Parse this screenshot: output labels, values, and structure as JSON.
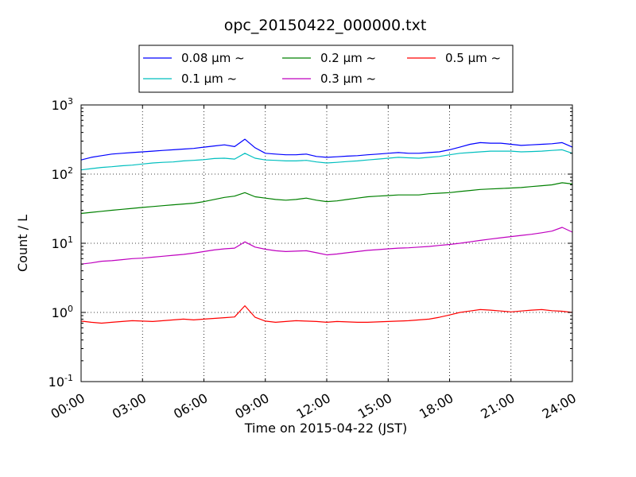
{
  "chart_data": {
    "type": "line",
    "title": "opc_20150422_000000.txt",
    "xlabel": "Time on 2015-04-22 (JST)",
    "ylabel": "Count / L",
    "yscale": "log",
    "ylim": [
      0.1,
      1000
    ],
    "xlim": [
      "00:00",
      "24:00"
    ],
    "x_ticks": [
      "00:00",
      "03:00",
      "06:00",
      "09:00",
      "12:00",
      "15:00",
      "18:00",
      "21:00",
      "24:00"
    ],
    "y_ticks": [
      {
        "base": "10",
        "exp": "-1"
      },
      {
        "base": "10",
        "exp": "0"
      },
      {
        "base": "10",
        "exp": "1"
      },
      {
        "base": "10",
        "exp": "2"
      },
      {
        "base": "10",
        "exp": "3"
      }
    ],
    "grid": true,
    "legend_position": "top, outside plot",
    "x": [
      "00:00",
      "00:30",
      "01:00",
      "01:30",
      "02:00",
      "02:30",
      "03:00",
      "03:30",
      "04:00",
      "04:30",
      "05:00",
      "05:30",
      "06:00",
      "06:30",
      "07:00",
      "07:30",
      "08:00",
      "08:30",
      "09:00",
      "09:30",
      "10:00",
      "10:30",
      "11:00",
      "11:30",
      "12:00",
      "12:30",
      "13:00",
      "13:30",
      "14:00",
      "14:30",
      "15:00",
      "15:30",
      "16:00",
      "16:30",
      "17:00",
      "17:30",
      "18:00",
      "18:30",
      "19:00",
      "19:30",
      "20:00",
      "20:30",
      "21:00",
      "21:30",
      "22:00",
      "22:30",
      "23:00",
      "23:30",
      "24:00"
    ],
    "series": [
      {
        "name": "0.08 μm ~",
        "color": "#0000ff",
        "values": [
          160,
          175,
          185,
          195,
          200,
          205,
          210,
          215,
          220,
          225,
          230,
          235,
          245,
          255,
          265,
          250,
          320,
          240,
          200,
          195,
          190,
          190,
          195,
          180,
          175,
          178,
          182,
          185,
          190,
          195,
          200,
          205,
          200,
          200,
          205,
          210,
          225,
          245,
          270,
          285,
          280,
          280,
          270,
          260,
          265,
          270,
          275,
          285,
          245
        ]
      },
      {
        "name": "0.1 μm ~",
        "color": "#00bfbf",
        "values": [
          115,
          120,
          125,
          128,
          132,
          135,
          140,
          145,
          148,
          150,
          155,
          158,
          162,
          168,
          170,
          165,
          200,
          170,
          160,
          158,
          155,
          155,
          158,
          150,
          145,
          148,
          152,
          155,
          160,
          165,
          170,
          175,
          172,
          170,
          175,
          180,
          190,
          200,
          205,
          210,
          215,
          215,
          215,
          210,
          212,
          215,
          220,
          225,
          200
        ]
      },
      {
        "name": "0.2 μm ~",
        "color": "#008000",
        "values": [
          27,
          28,
          29,
          30,
          31,
          32,
          33,
          34,
          35,
          36,
          37,
          38,
          40,
          43,
          46,
          48,
          54,
          47,
          45,
          43,
          42,
          43,
          45,
          42,
          40,
          41,
          43,
          45,
          47,
          48,
          49,
          50,
          50,
          50,
          52,
          53,
          54,
          56,
          58,
          60,
          61,
          62,
          63,
          64,
          66,
          68,
          70,
          75,
          72
        ]
      },
      {
        "name": "0.3 μm ~",
        "color": "#bf00bf",
        "values": [
          5.0,
          5.2,
          5.5,
          5.6,
          5.8,
          6.0,
          6.1,
          6.3,
          6.5,
          6.7,
          6.9,
          7.2,
          7.6,
          8.0,
          8.3,
          8.5,
          10.5,
          8.8,
          8.2,
          7.8,
          7.6,
          7.7,
          7.8,
          7.3,
          6.8,
          7.0,
          7.3,
          7.6,
          7.9,
          8.1,
          8.3,
          8.5,
          8.6,
          8.8,
          9.0,
          9.3,
          9.6,
          10.0,
          10.5,
          11.0,
          11.5,
          12.0,
          12.5,
          13.0,
          13.5,
          14.2,
          15.0,
          17.0,
          14.5
        ]
      },
      {
        "name": "0.5 μm ~",
        "color": "#ff0000",
        "values": [
          0.75,
          0.72,
          0.7,
          0.72,
          0.74,
          0.76,
          0.75,
          0.74,
          0.76,
          0.78,
          0.8,
          0.78,
          0.8,
          0.82,
          0.84,
          0.86,
          1.25,
          0.85,
          0.75,
          0.72,
          0.74,
          0.76,
          0.75,
          0.74,
          0.72,
          0.74,
          0.73,
          0.72,
          0.72,
          0.73,
          0.74,
          0.75,
          0.76,
          0.78,
          0.8,
          0.85,
          0.92,
          1.0,
          1.05,
          1.1,
          1.08,
          1.05,
          1.02,
          1.05,
          1.08,
          1.1,
          1.06,
          1.04,
          1.0
        ]
      }
    ]
  }
}
